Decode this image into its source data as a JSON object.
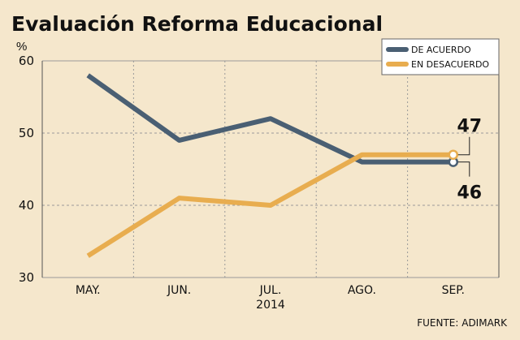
{
  "chart_data": {
    "type": "line",
    "title": "Evaluación Reforma Educacional",
    "ylabel": "%",
    "ylim": [
      30,
      60
    ],
    "yticks": [
      30,
      40,
      50,
      60
    ],
    "categories": [
      "MAY.",
      "JUN.",
      "JUL.",
      "AGO.",
      "SEP."
    ],
    "year_label": "2014",
    "series": [
      {
        "name": "DE ACUERDO",
        "color": "#4a5f73",
        "values": [
          58,
          49,
          52,
          46,
          46
        ]
      },
      {
        "name": "EN DESACUERDO",
        "color": "#e8ad4f",
        "values": [
          33,
          41,
          40,
          47,
          47
        ]
      }
    ],
    "end_labels": [
      "47",
      "46"
    ],
    "grid": true,
    "legend_position": "top-right",
    "source": "FUENTE: ADIMARK"
  },
  "colors": {
    "background": "#f5e7cc",
    "grid": "#9a9a9a",
    "text": "#111111"
  }
}
